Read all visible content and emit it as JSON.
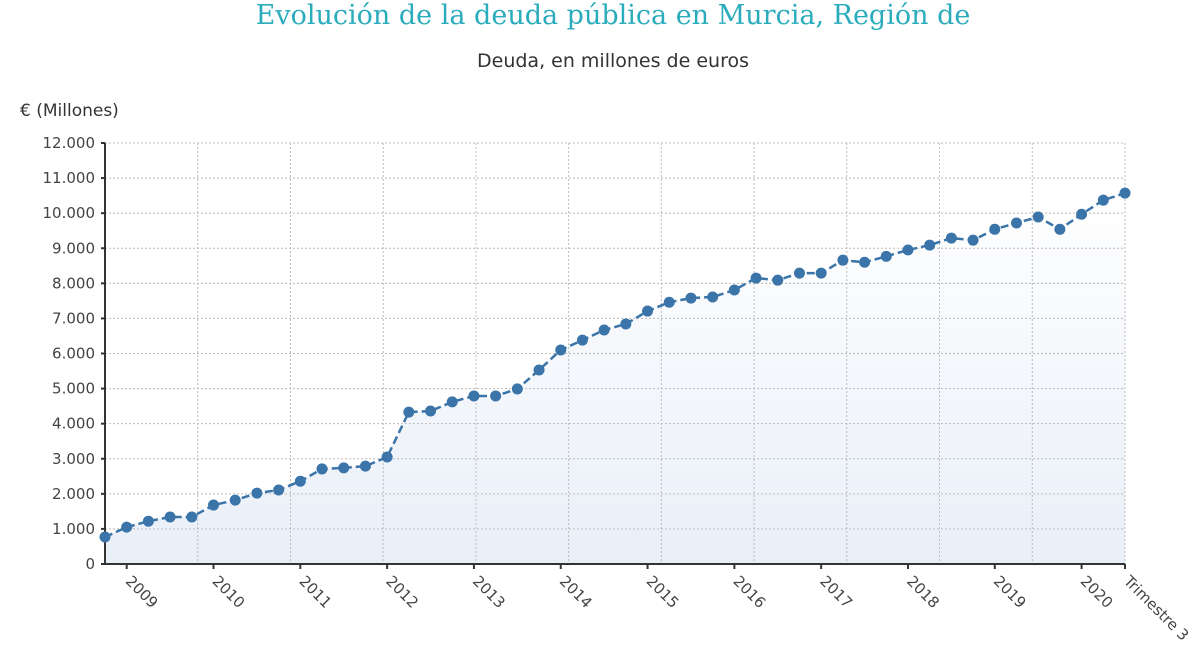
{
  "chart_data": {
    "type": "line",
    "title": "Evolución de la deuda pública en Murcia, Región de",
    "subtitle": "Deuda, en millones de euros",
    "ylabel": "€ (Millones)",
    "xlabel": "",
    "ylim": [
      0,
      12000
    ],
    "yticks": [
      0,
      1000,
      2000,
      3000,
      4000,
      5000,
      6000,
      7000,
      8000,
      9000,
      10000,
      11000,
      12000
    ],
    "ytick_labels": [
      "0",
      "1.000",
      "2.000",
      "3.000",
      "4.000",
      "5.000",
      "6.000",
      "7.000",
      "8.000",
      "9.000",
      "10.000",
      "11.000",
      "12.000"
    ],
    "x_tick_labels": [
      {
        "index": 1,
        "label": "2009"
      },
      {
        "index": 5,
        "label": "2010"
      },
      {
        "index": 9,
        "label": "2011"
      },
      {
        "index": 13,
        "label": "2012"
      },
      {
        "index": 17,
        "label": "2013"
      },
      {
        "index": 21,
        "label": "2014"
      },
      {
        "index": 25,
        "label": "2015"
      },
      {
        "index": 29,
        "label": "2016"
      },
      {
        "index": 33,
        "label": "2017"
      },
      {
        "index": 37,
        "label": "2018"
      },
      {
        "index": 41,
        "label": "2019"
      },
      {
        "index": 45,
        "label": "2020"
      },
      {
        "index": 47,
        "label": "Trimestre 3"
      }
    ],
    "grid": true,
    "line_color": "#3a74a8",
    "title_color": "#2aacbd",
    "values": [
      770,
      1050,
      1220,
      1340,
      1340,
      1680,
      1820,
      2020,
      2110,
      2360,
      2710,
      2740,
      2790,
      3050,
      4330,
      4360,
      4620,
      4790,
      4790,
      4990,
      5530,
      6100,
      6380,
      6670,
      6840,
      7210,
      7460,
      7580,
      7610,
      7810,
      8150,
      8090,
      8290,
      8290,
      8660,
      8600,
      8770,
      8950,
      9090,
      9290,
      9230,
      9540,
      9720,
      9890,
      9540,
      9970,
      10370,
      10570
    ]
  }
}
